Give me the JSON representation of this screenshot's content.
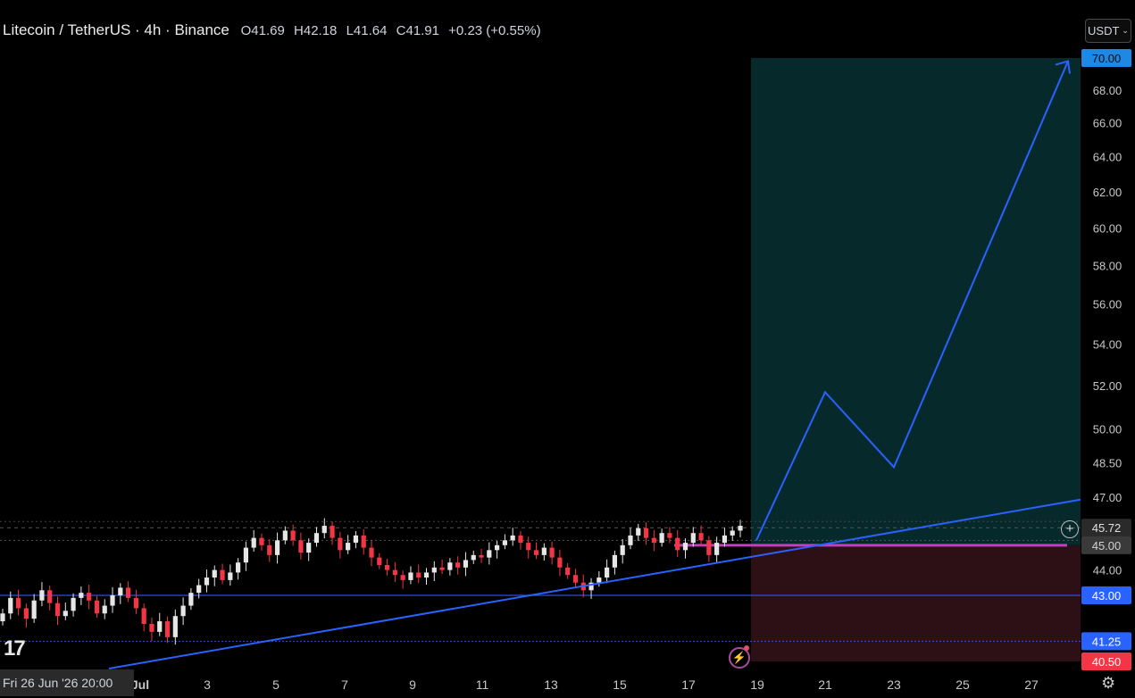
{
  "header": {
    "symbol": "Litecoin / TetherUS · 4h · Binance",
    "open": "O41.69",
    "high": "H42.18",
    "low": "L41.64",
    "close": "C41.91",
    "change": "+0.23 (+0.55%)"
  },
  "currency_button": "USDT",
  "crosshair_time_label": "Fri 26 Jun '26  20:00",
  "colors": {
    "up": "#e6e6e6",
    "down": "#f23645",
    "trendline": "#2962ff",
    "target_zone": "#062a2c",
    "stop_zone": "#2d1015",
    "magenta_level": "#c040c0"
  },
  "chart_data": {
    "type": "candlestick",
    "timeframe": "4h",
    "x_tick_labels": [
      "Jul",
      "3",
      "5",
      "7",
      "9",
      "11",
      "13",
      "15",
      "17",
      "19",
      "21",
      "23",
      "25",
      "27"
    ],
    "y_tick_labels": [
      "68.00",
      "66.00",
      "64.00",
      "62.00",
      "60.00",
      "58.00",
      "56.00",
      "54.00",
      "52.00",
      "50.00",
      "48.50",
      "47.00",
      "44.00"
    ],
    "y_range": [
      40.5,
      70.0
    ],
    "y_scale": "log",
    "horizontal_levels": [
      {
        "price": 45.72,
        "label": "45.72",
        "style": "dotted"
      },
      {
        "price": 45.0,
        "label": "45.00",
        "style": "magenta"
      },
      {
        "price": 43.0,
        "label": "43.00",
        "style": "solid-blue"
      },
      {
        "price": 41.25,
        "label": "41.25",
        "style": "dotted-blue"
      }
    ],
    "position": {
      "entry": 45.0,
      "target": 70.0,
      "target_label": "70.00",
      "stop": 40.5,
      "stop_label": "40.50",
      "start_day": 19
    },
    "trendline": {
      "from": {
        "day": 27.5,
        "price": 40.4
      },
      "to": {
        "day": 34.7,
        "price": 46.9
      }
    },
    "projection_path": [
      {
        "day": 19,
        "price": 45.2
      },
      {
        "day": 21,
        "price": 51.7
      },
      {
        "day": 23,
        "price": 48.3
      },
      {
        "day": 28.3,
        "price": 69.8
      }
    ],
    "candles_approx_close": [
      42.3,
      42.9,
      42.5,
      42.1,
      42.8,
      43.2,
      42.7,
      42.2,
      42.4,
      42.9,
      43.1,
      42.8,
      42.3,
      42.6,
      43.0,
      43.3,
      42.9,
      42.5,
      41.9,
      41.6,
      42.0,
      41.4,
      42.2,
      42.6,
      43.1,
      43.4,
      43.7,
      44.0,
      43.6,
      43.9,
      44.3,
      44.9,
      45.3,
      45.0,
      44.6,
      45.2,
      45.6,
      45.2,
      44.7,
      45.1,
      45.5,
      45.8,
      45.3,
      44.8,
      45.1,
      45.4,
      44.9,
      44.5,
      44.2,
      44.0,
      43.8,
      43.6,
      43.9,
      43.7,
      43.9,
      44.1,
      44.0,
      44.3,
      44.1,
      44.4,
      44.6,
      44.5,
      44.8,
      45.0,
      45.2,
      45.4,
      45.1,
      44.8,
      44.6,
      44.9,
      44.5,
      44.1,
      43.8,
      43.5,
      43.2,
      43.5,
      43.7,
      44.1,
      44.6,
      45.0,
      45.4,
      45.7,
      45.3,
      45.1,
      45.5,
      45.3,
      44.8,
      45.1,
      45.5,
      45.2,
      44.6,
      45.1,
      45.4,
      45.6,
      45.8
    ]
  },
  "price_labels": {
    "p70": "70.00",
    "p4572": "45.72",
    "p45": "45.00",
    "p43": "43.00",
    "p4125": "41.25",
    "p4050": "40.50"
  }
}
